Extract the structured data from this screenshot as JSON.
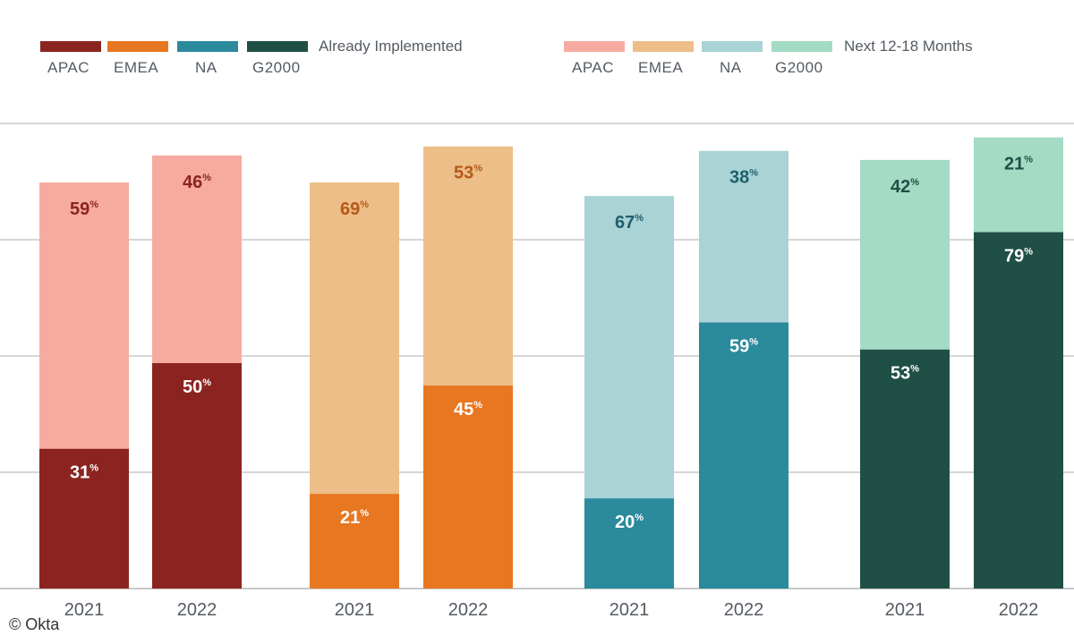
{
  "legend": {
    "implemented_title": "Already Implemented",
    "next_title": "Next 12-18 Months",
    "implemented": [
      {
        "label": "APAC",
        "color": "#8b2420"
      },
      {
        "label": "EMEA",
        "color": "#e87722"
      },
      {
        "label": "NA",
        "color": "#2b8a9c"
      },
      {
        "label": "G2000",
        "color": "#1f4f45"
      }
    ],
    "next": [
      {
        "label": "APAC",
        "color": "#f7aba0"
      },
      {
        "label": "EMEA",
        "color": "#edbe87"
      },
      {
        "label": "NA",
        "color": "#a9d3d4"
      },
      {
        "label": "G2000",
        "color": "#a3dbc4"
      }
    ]
  },
  "watermark": "© Okta",
  "percent_sign": "%",
  "chart_data": {
    "type": "bar",
    "stacked": true,
    "title": "",
    "xlabel": "",
    "ylabel": "",
    "ylim": [
      0,
      100
    ],
    "grid": true,
    "groups": [
      "APAC",
      "EMEA",
      "NA",
      "G2000"
    ],
    "categories": [
      "2021",
      "2022"
    ],
    "series": [
      {
        "name": "Already Implemented",
        "values": {
          "APAC": [
            31,
            50
          ],
          "EMEA": [
            21,
            45
          ],
          "NA": [
            20,
            59
          ],
          "G2000": [
            53,
            79
          ]
        }
      },
      {
        "name": "Next 12-18 Months",
        "values": {
          "APAC": [
            59,
            46
          ],
          "EMEA": [
            69,
            53
          ],
          "NA": [
            67,
            38
          ],
          "G2000": [
            42,
            21
          ]
        }
      }
    ],
    "label_colors": {
      "implemented": "#ffffff",
      "next": {
        "APAC": "#8b2420",
        "EMEA": "#b5581a",
        "NA": "#1f5f6b",
        "G2000": "#1f4f45"
      }
    },
    "axis_color": "#c8c8c8"
  }
}
